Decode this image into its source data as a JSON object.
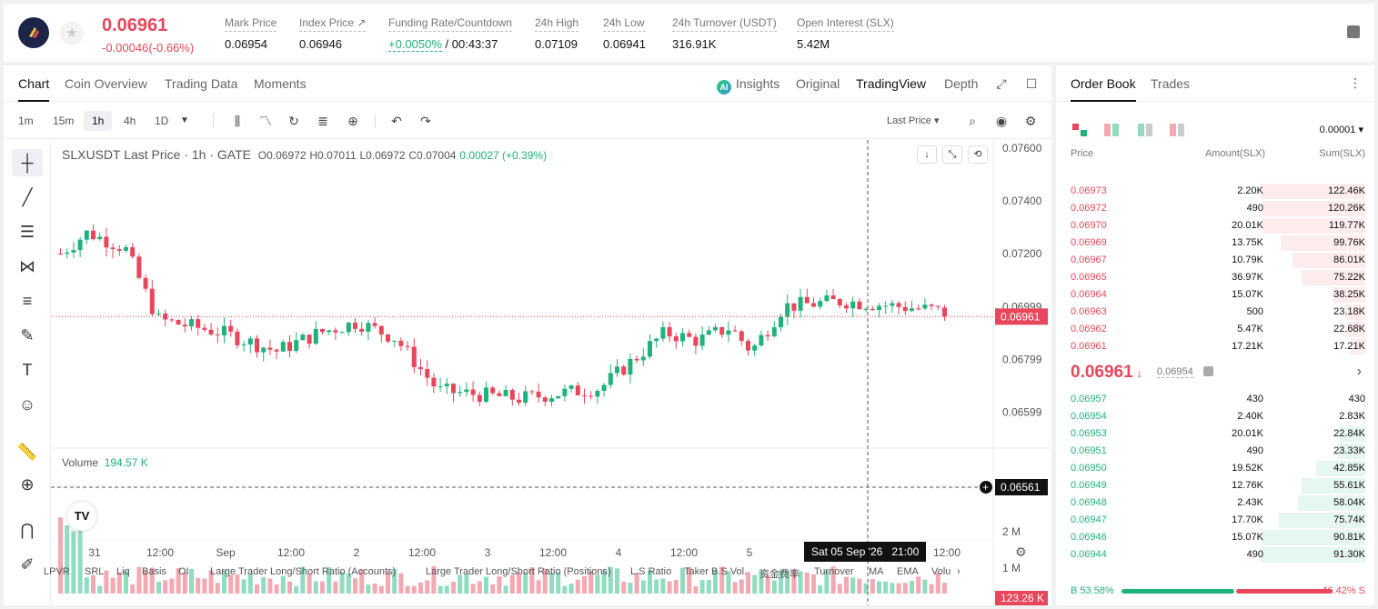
{
  "header": {
    "last_price": "0.06961",
    "change": "-0.00046(-0.66%)",
    "stats": [
      {
        "label": "Mark Price",
        "value": "0.06954"
      },
      {
        "label": "Index Price ↗",
        "value": "0.06946"
      },
      {
        "label": "Funding Rate/Countdown",
        "value_green": "+0.0050%",
        "value": " / 00:43:37"
      },
      {
        "label": "24h High",
        "value": "0.07109"
      },
      {
        "label": "24h Low",
        "value": "0.06941"
      },
      {
        "label": "24h Turnover (USDT)",
        "value": "316.91K"
      },
      {
        "label": "Open Interest (SLX)",
        "value": "5.42M"
      }
    ]
  },
  "chart_tabs": [
    "Chart",
    "Coin Overview",
    "Trading Data",
    "Moments"
  ],
  "chart_right_tabs": {
    "insights": "Insights",
    "original": "Original",
    "tradingview": "TradingView",
    "depth": "Depth"
  },
  "timeframes": [
    "1m",
    "15m",
    "1h",
    "4h",
    "1D"
  ],
  "price_type": "Last Price",
  "legend": {
    "symbol": "SLXUSDT Last Price · 1h · GATE",
    "o": "O0.06972",
    "h": "H0.07011",
    "l": "L0.06972",
    "c": "C0.07004",
    "chg": "0.00027 (+0.39%)"
  },
  "volume_legend": {
    "label": "Volume",
    "value": "194.57 K"
  },
  "price_axis": {
    "ticks": [
      "0.07600",
      "0.07400",
      "0.07200",
      "0.06999",
      "0.06799",
      "0.06599"
    ],
    "current_label": "0.06961",
    "crosshair_label": "0.06561",
    "vol_ticks": [
      "2 M",
      "1 M"
    ],
    "vol_current": "123.26 K"
  },
  "time_axis": {
    "ticks": [
      "31",
      "12:00",
      "Sep",
      "12:00",
      "2",
      "12:00",
      "3",
      "12:00",
      "4",
      "12:00",
      "5",
      "12:00"
    ],
    "crosshair_label": "Sat 05 Sep '26   21:00"
  },
  "indicators": [
    "LPVR",
    "SRL",
    "Liq",
    "Basis",
    "OI",
    "Large Trader Long/Short Ratio (Accounts)",
    "Large Trader Long/Short Ratio (Positions)",
    "L.S Ratio",
    "Taker B.S Vol.",
    "资金费率",
    "Turnover",
    "MA",
    "EMA",
    "Volu"
  ],
  "orderbook": {
    "tabs": [
      "Order Book",
      "Trades"
    ],
    "precision": "0.00001",
    "headers": {
      "price": "Price",
      "amount": "Amount(SLX)",
      "sum": "Sum(SLX)"
    },
    "asks": [
      {
        "price": "0.06973",
        "amount": "2.20K",
        "sum": "122.46K",
        "depth": 1.0
      },
      {
        "price": "0.06972",
        "amount": "490",
        "sum": "120.26K",
        "depth": 0.98
      },
      {
        "price": "0.06970",
        "amount": "20.01K",
        "sum": "119.77K",
        "depth": 0.98
      },
      {
        "price": "0.06969",
        "amount": "13.75K",
        "sum": "99.76K",
        "depth": 0.81
      },
      {
        "price": "0.06967",
        "amount": "10.79K",
        "sum": "86.01K",
        "depth": 0.7
      },
      {
        "price": "0.06965",
        "amount": "36.97K",
        "sum": "75.22K",
        "depth": 0.61
      },
      {
        "price": "0.06964",
        "amount": "15.07K",
        "sum": "38.25K",
        "depth": 0.31
      },
      {
        "price": "0.06963",
        "amount": "500",
        "sum": "23.18K",
        "depth": 0.19
      },
      {
        "price": "0.06962",
        "amount": "5.47K",
        "sum": "22.68K",
        "depth": 0.18
      },
      {
        "price": "0.06961",
        "amount": "17.21K",
        "sum": "17.21K",
        "depth": 0.14
      }
    ],
    "mid_price": "0.06961",
    "mid_mark": "0.06954",
    "bids": [
      {
        "price": "0.06957",
        "amount": "430",
        "sum": "430",
        "depth": 0.005
      },
      {
        "price": "0.06954",
        "amount": "2.40K",
        "sum": "2.83K",
        "depth": 0.03
      },
      {
        "price": "0.06953",
        "amount": "20.01K",
        "sum": "22.84K",
        "depth": 0.25
      },
      {
        "price": "0.06951",
        "amount": "490",
        "sum": "23.33K",
        "depth": 0.26
      },
      {
        "price": "0.06950",
        "amount": "19.52K",
        "sum": "42.85K",
        "depth": 0.47
      },
      {
        "price": "0.06949",
        "amount": "12.76K",
        "sum": "55.61K",
        "depth": 0.61
      },
      {
        "price": "0.06948",
        "amount": "2.43K",
        "sum": "58.04K",
        "depth": 0.64
      },
      {
        "price": "0.06947",
        "amount": "17.70K",
        "sum": "75.74K",
        "depth": 0.83
      },
      {
        "price": "0.06946",
        "amount": "15.07K",
        "sum": "90.81K",
        "depth": 0.99
      },
      {
        "price": "0.06944",
        "amount": "490",
        "sum": "91.30K",
        "depth": 1.0
      }
    ],
    "buy_ratio": "B 53.58%",
    "sell_ratio": "46.42% S",
    "buy_pct": 53.58
  },
  "colors": {
    "up": "#1fb27c",
    "down": "#e8475b",
    "up_vol": "#8fdcc0",
    "down_vol": "#f4a8b2"
  }
}
